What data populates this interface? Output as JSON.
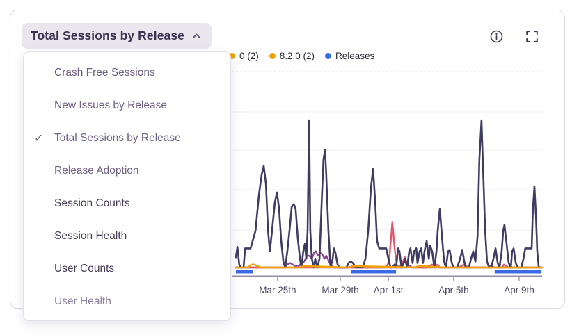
{
  "widget": {
    "title": "Total Sessions by Release"
  },
  "dropdown": {
    "items": [
      {
        "label": "Crash Free Sessions",
        "checked": false,
        "tone": "muted"
      },
      {
        "label": "New Issues by Release",
        "checked": false,
        "tone": "muted"
      },
      {
        "label": "Total Sessions by Release",
        "checked": true,
        "tone": "muted"
      },
      {
        "label": "Release Adoption",
        "checked": false,
        "tone": "muted"
      },
      {
        "label": "Session Counts",
        "checked": false,
        "tone": "dark"
      },
      {
        "label": "Session Health",
        "checked": false,
        "tone": "dark"
      },
      {
        "label": "User Counts",
        "checked": false,
        "tone": "dark"
      },
      {
        "label": "User Health",
        "checked": false,
        "tone": "faint"
      }
    ]
  },
  "legend": {
    "clipped_fragment": {
      "label": "0 (2)",
      "dot_color": "#f0a202"
    },
    "items": [
      {
        "label": "8.2.0 (2)",
        "dot_color": "#f0a202"
      },
      {
        "label": "Releases",
        "dot_color": "#3b6be4"
      }
    ]
  },
  "chart_data": {
    "type": "line",
    "title": "Total Sessions by Release",
    "x_units": "permille of visible time axis (Mar 22 - Apr 10 approx.)",
    "y_units": "relative height 0-100 (y-axis tick labels hidden behind open menu)",
    "x_axis": {
      "tick_labels": [
        "Mar 25th",
        "Mar 29th",
        "Apr 1st",
        "Apr 5th",
        "Apr 9th"
      ],
      "tick_pos_permille": [
        136,
        341,
        498,
        711,
        925
      ]
    },
    "series": [
      {
        "legend_label": null,
        "color": "#8c4a94",
        "points": [
          [
            0,
            0
          ],
          [
            159,
            0
          ],
          [
            168,
            2
          ],
          [
            177,
            3
          ],
          [
            186,
            2
          ],
          [
            195,
            1
          ],
          [
            205,
            1
          ],
          [
            214,
            3
          ],
          [
            223,
            4
          ],
          [
            232,
            8
          ],
          [
            239,
            8
          ],
          [
            248,
            6
          ],
          [
            255,
            10
          ],
          [
            261,
            11
          ],
          [
            268,
            8
          ],
          [
            275,
            10
          ],
          [
            282,
            9
          ],
          [
            289,
            6
          ],
          [
            295,
            8
          ],
          [
            302,
            5
          ],
          [
            309,
            2
          ],
          [
            318,
            0
          ],
          [
            332,
            0
          ],
          [
            555,
            0
          ],
          [
            561,
            2
          ],
          [
            568,
            1
          ],
          [
            577,
            0
          ],
          [
            823,
            0
          ],
          [
            830,
            1
          ],
          [
            836,
            1
          ],
          [
            845,
            0
          ],
          [
            1000,
            0
          ]
        ]
      },
      {
        "legend_label": null,
        "color": "#e0566e",
        "points": [
          [
            0,
            0
          ],
          [
            482,
            0
          ],
          [
            493,
            1
          ],
          [
            500,
            4
          ],
          [
            505,
            16
          ],
          [
            511,
            31
          ],
          [
            518,
            14
          ],
          [
            525,
            2
          ],
          [
            532,
            0
          ],
          [
            543,
            3
          ],
          [
            552,
            7
          ],
          [
            561,
            1
          ],
          [
            573,
            0
          ],
          [
            623,
            0
          ],
          [
            630,
            1
          ],
          [
            641,
            2
          ],
          [
            650,
            1
          ],
          [
            659,
            2
          ],
          [
            666,
            0
          ],
          [
            727,
            0
          ],
          [
            736,
            1
          ],
          [
            745,
            2
          ],
          [
            752,
            1
          ],
          [
            759,
            0
          ],
          [
            868,
            0
          ],
          [
            875,
            2
          ],
          [
            882,
            1
          ],
          [
            891,
            0
          ],
          [
            1000,
            0
          ]
        ]
      },
      {
        "legend_label": null,
        "color": "#3e3c63",
        "points": [
          [
            0,
            7
          ],
          [
            5,
            14
          ],
          [
            11,
            2
          ],
          [
            16,
            0
          ],
          [
            25,
            0
          ],
          [
            30,
            13
          ],
          [
            48,
            13
          ],
          [
            64,
            25
          ],
          [
            75,
            49
          ],
          [
            84,
            63
          ],
          [
            91,
            69
          ],
          [
            98,
            57
          ],
          [
            105,
            25
          ],
          [
            111,
            11
          ],
          [
            118,
            25
          ],
          [
            127,
            44
          ],
          [
            134,
            51
          ],
          [
            141,
            40
          ],
          [
            148,
            18
          ],
          [
            155,
            4
          ],
          [
            161,
            0
          ],
          [
            168,
            11
          ],
          [
            175,
            25
          ],
          [
            182,
            41
          ],
          [
            189,
            43
          ],
          [
            195,
            40
          ],
          [
            202,
            20
          ],
          [
            209,
            6
          ],
          [
            214,
            0
          ],
          [
            220,
            11
          ],
          [
            225,
            16
          ],
          [
            230,
            6
          ],
          [
            234,
            25
          ],
          [
            239,
            100
          ],
          [
            243,
            25
          ],
          [
            248,
            6
          ],
          [
            255,
            0
          ],
          [
            259,
            6
          ],
          [
            266,
            0
          ],
          [
            273,
            6
          ],
          [
            280,
            44
          ],
          [
            286,
            73
          ],
          [
            291,
            80
          ],
          [
            295,
            63
          ],
          [
            302,
            25
          ],
          [
            309,
            0
          ],
          [
            316,
            6
          ],
          [
            320,
            13
          ],
          [
            325,
            10
          ],
          [
            332,
            2
          ],
          [
            339,
            0
          ],
          [
            361,
            0
          ],
          [
            368,
            3
          ],
          [
            375,
            4
          ],
          [
            382,
            3
          ],
          [
            389,
            1
          ],
          [
            395,
            0
          ],
          [
            414,
            0
          ],
          [
            423,
            6
          ],
          [
            432,
            25
          ],
          [
            441,
            54
          ],
          [
            448,
            67
          ],
          [
            455,
            44
          ],
          [
            461,
            18
          ],
          [
            468,
            13
          ],
          [
            491,
            13
          ],
          [
            498,
            6
          ],
          [
            505,
            0
          ],
          [
            511,
            0
          ],
          [
            518,
            2
          ],
          [
            523,
            0
          ],
          [
            530,
            13
          ],
          [
            534,
            11
          ],
          [
            541,
            0
          ],
          [
            548,
            3
          ],
          [
            552,
            6
          ],
          [
            559,
            0
          ],
          [
            566,
            11
          ],
          [
            570,
            13
          ],
          [
            577,
            3
          ],
          [
            582,
            11
          ],
          [
            589,
            13
          ],
          [
            593,
            3
          ],
          [
            600,
            11
          ],
          [
            605,
            13
          ],
          [
            611,
            3
          ],
          [
            616,
            11
          ],
          [
            623,
            18
          ],
          [
            630,
            6
          ],
          [
            634,
            15
          ],
          [
            641,
            11
          ],
          [
            648,
            0
          ],
          [
            655,
            11
          ],
          [
            659,
            25
          ],
          [
            666,
            40
          ],
          [
            673,
            21
          ],
          [
            680,
            4
          ],
          [
            686,
            0
          ],
          [
            693,
            11
          ],
          [
            698,
            12
          ],
          [
            705,
            3
          ],
          [
            711,
            0
          ],
          [
            723,
            0
          ],
          [
            732,
            6
          ],
          [
            739,
            12
          ],
          [
            745,
            5
          ],
          [
            750,
            0
          ],
          [
            761,
            0
          ],
          [
            768,
            6
          ],
          [
            775,
            11
          ],
          [
            782,
            4
          ],
          [
            789,
            21
          ],
          [
            795,
            73
          ],
          [
            802,
            100
          ],
          [
            807,
            68
          ],
          [
            814,
            25
          ],
          [
            820,
            4
          ],
          [
            827,
            0
          ],
          [
            834,
            0
          ],
          [
            841,
            6
          ],
          [
            848,
            13
          ],
          [
            855,
            3
          ],
          [
            861,
            0
          ],
          [
            868,
            11
          ],
          [
            873,
            25
          ],
          [
            877,
            29
          ],
          [
            884,
            16
          ],
          [
            891,
            3
          ],
          [
            898,
            0
          ],
          [
            902,
            11
          ],
          [
            907,
            13
          ],
          [
            914,
            3
          ],
          [
            920,
            0
          ],
          [
            932,
            0
          ],
          [
            939,
            6
          ],
          [
            945,
            13
          ],
          [
            966,
            13
          ],
          [
            970,
            40
          ],
          [
            975,
            55
          ],
          [
            980,
            35
          ],
          [
            984,
            11
          ],
          [
            989,
            0
          ],
          [
            995,
            0
          ]
        ]
      },
      {
        "legend_label": "8.2.0 (2)",
        "color": "#f0a202",
        "points": [
          [
            0,
            0
          ],
          [
            39,
            0
          ],
          [
            50,
            2
          ],
          [
            61,
            2
          ],
          [
            70,
            1
          ],
          [
            84,
            0
          ],
          [
            209,
            0
          ],
          [
            220,
            1
          ],
          [
            232,
            1
          ],
          [
            368,
            0
          ],
          [
            380,
            1
          ],
          [
            391,
            1
          ],
          [
            586,
            0
          ],
          [
            595,
            1
          ],
          [
            607,
            1
          ],
          [
            686,
            0
          ],
          [
            823,
            0
          ],
          [
            914,
            0
          ],
          [
            1000,
            0
          ]
        ]
      }
    ],
    "release_bars": {
      "legend_label": "Releases",
      "color": "#3b6be4",
      "spans_permille": [
        [
          0,
          55
        ],
        [
          375,
          523
        ],
        [
          845,
          998
        ]
      ]
    },
    "grid": "faint horizontal lines, top line dashed",
    "legend_position": "top, partially hidden behind open dropdown menu"
  }
}
